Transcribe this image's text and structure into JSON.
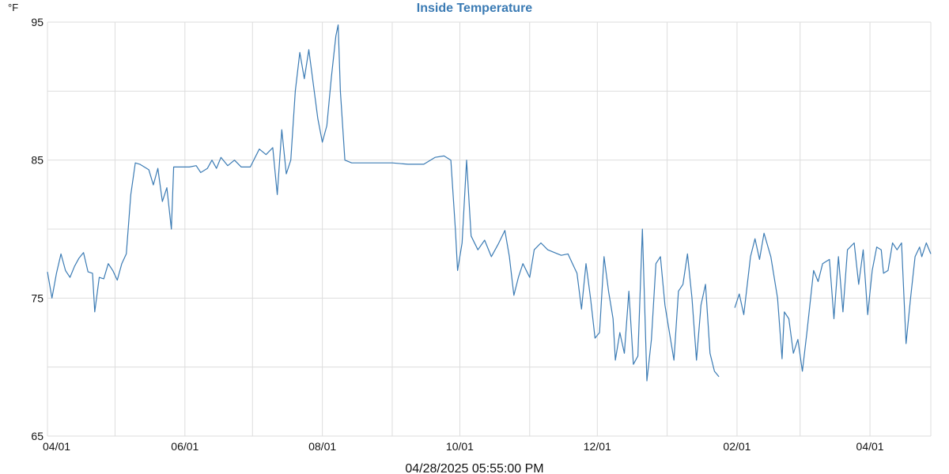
{
  "chart_data": {
    "type": "line",
    "title": "Inside Temperature",
    "y_unit": "°F",
    "ylim": [
      65,
      95
    ],
    "y_ticks": [
      65,
      75,
      85,
      95
    ],
    "x_range": [
      "2024-04-01",
      "2025-04-28"
    ],
    "x_ticks": [
      {
        "date": "2024-04-01",
        "label": "04/01"
      },
      {
        "date": "2024-06-01",
        "label": "06/01"
      },
      {
        "date": "2024-08-01",
        "label": "08/01"
      },
      {
        "date": "2024-10-01",
        "label": "10/01"
      },
      {
        "date": "2024-12-01",
        "label": "12/01"
      },
      {
        "date": "2025-02-01",
        "label": "02/01"
      },
      {
        "date": "2025-04-01",
        "label": "04/01"
      }
    ],
    "grid": true,
    "series": [
      {
        "color": "#3b7bb4",
        "segments": [
          [
            [
              "2024-04-01",
              76.9
            ],
            [
              "2024-04-03",
              75.0
            ],
            [
              "2024-04-05",
              76.8
            ],
            [
              "2024-04-07",
              78.2
            ],
            [
              "2024-04-09",
              77.0
            ],
            [
              "2024-04-11",
              76.5
            ],
            [
              "2024-04-13",
              77.3
            ],
            [
              "2024-04-15",
              77.9
            ],
            [
              "2024-04-17",
              78.3
            ],
            [
              "2024-04-19",
              76.9
            ],
            [
              "2024-04-21",
              76.8
            ],
            [
              "2024-04-22",
              74.0
            ],
            [
              "2024-04-24",
              76.5
            ],
            [
              "2024-04-26",
              76.4
            ],
            [
              "2024-04-28",
              77.5
            ],
            [
              "2024-04-30",
              77.0
            ],
            [
              "2024-05-02",
              76.3
            ],
            [
              "2024-05-04",
              77.5
            ],
            [
              "2024-05-06",
              78.2
            ],
            [
              "2024-05-08",
              82.5
            ],
            [
              "2024-05-10",
              84.8
            ],
            [
              "2024-05-12",
              84.7
            ],
            [
              "2024-05-14",
              84.5
            ],
            [
              "2024-05-16",
              84.3
            ],
            [
              "2024-05-18",
              83.2
            ],
            [
              "2024-05-20",
              84.4
            ],
            [
              "2024-05-22",
              82.0
            ],
            [
              "2024-05-24",
              83.0
            ],
            [
              "2024-05-26",
              80.0
            ],
            [
              "2024-05-27",
              84.5
            ],
            [
              "2024-05-30",
              84.5
            ],
            [
              "2024-06-03",
              84.5
            ],
            [
              "2024-06-06",
              84.6
            ],
            [
              "2024-06-08",
              84.1
            ],
            [
              "2024-06-11",
              84.4
            ],
            [
              "2024-06-13",
              85.0
            ],
            [
              "2024-06-15",
              84.4
            ],
            [
              "2024-06-17",
              85.2
            ],
            [
              "2024-06-20",
              84.6
            ],
            [
              "2024-06-23",
              85.0
            ],
            [
              "2024-06-26",
              84.5
            ],
            [
              "2024-06-30",
              84.5
            ],
            [
              "2024-07-04",
              85.8
            ],
            [
              "2024-07-07",
              85.4
            ],
            [
              "2024-07-10",
              85.9
            ],
            [
              "2024-07-12",
              82.5
            ],
            [
              "2024-07-14",
              87.2
            ],
            [
              "2024-07-16",
              84.0
            ],
            [
              "2024-07-18",
              85.0
            ],
            [
              "2024-07-20",
              90.0
            ],
            [
              "2024-07-22",
              92.8
            ],
            [
              "2024-07-24",
              90.9
            ],
            [
              "2024-07-26",
              93.0
            ],
            [
              "2024-07-28",
              90.5
            ],
            [
              "2024-07-30",
              88.0
            ],
            [
              "2024-08-01",
              86.3
            ],
            [
              "2024-08-03",
              87.5
            ],
            [
              "2024-08-05",
              91.0
            ],
            [
              "2024-08-07",
              94.0
            ],
            [
              "2024-08-08",
              94.8
            ],
            [
              "2024-08-09",
              90.0
            ],
            [
              "2024-08-11",
              85.0
            ],
            [
              "2024-08-14",
              84.8
            ],
            [
              "2024-08-19",
              84.8
            ],
            [
              "2024-08-25",
              84.8
            ],
            [
              "2024-09-01",
              84.8
            ],
            [
              "2024-09-08",
              84.7
            ],
            [
              "2024-09-15",
              84.7
            ],
            [
              "2024-09-20",
              85.2
            ],
            [
              "2024-09-24",
              85.3
            ],
            [
              "2024-09-27",
              85.0
            ],
            [
              "2024-09-29",
              80.0
            ],
            [
              "2024-09-30",
              77.0
            ],
            [
              "2024-10-02",
              79.0
            ],
            [
              "2024-10-04",
              85.0
            ],
            [
              "2024-10-06",
              79.5
            ],
            [
              "2024-10-09",
              78.5
            ],
            [
              "2024-10-12",
              79.2
            ],
            [
              "2024-10-15",
              78.0
            ],
            [
              "2024-10-18",
              78.9
            ],
            [
              "2024-10-21",
              79.9
            ],
            [
              "2024-10-23",
              78.0
            ],
            [
              "2024-10-25",
              75.2
            ],
            [
              "2024-10-27",
              76.5
            ],
            [
              "2024-10-29",
              77.5
            ],
            [
              "2024-11-01",
              76.5
            ],
            [
              "2024-11-03",
              78.5
            ],
            [
              "2024-11-06",
              79.0
            ],
            [
              "2024-11-09",
              78.5
            ],
            [
              "2024-11-12",
              78.3
            ],
            [
              "2024-11-15",
              78.1
            ],
            [
              "2024-11-18",
              78.2
            ],
            [
              "2024-11-20",
              77.5
            ],
            [
              "2024-11-22",
              76.8
            ],
            [
              "2024-11-24",
              74.2
            ],
            [
              "2024-11-26",
              77.5
            ],
            [
              "2024-11-28",
              75.0
            ],
            [
              "2024-11-30",
              72.1
            ],
            [
              "2024-12-02",
              72.5
            ],
            [
              "2024-12-04",
              78.0
            ],
            [
              "2024-12-06",
              75.5
            ],
            [
              "2024-12-08",
              73.5
            ],
            [
              "2024-12-09",
              70.5
            ],
            [
              "2024-12-11",
              72.5
            ],
            [
              "2024-12-13",
              71.0
            ],
            [
              "2024-12-15",
              75.5
            ],
            [
              "2024-12-17",
              70.2
            ],
            [
              "2024-12-19",
              70.8
            ],
            [
              "2024-12-21",
              80.0
            ],
            [
              "2024-12-23",
              69.0
            ],
            [
              "2024-12-25",
              72.0
            ],
            [
              "2024-12-27",
              77.5
            ],
            [
              "2024-12-29",
              78.0
            ],
            [
              "2024-12-31",
              74.5
            ],
            [
              "2025-01-02",
              72.5
            ],
            [
              "2025-01-04",
              70.5
            ],
            [
              "2025-01-06",
              75.5
            ],
            [
              "2025-01-08",
              76.0
            ],
            [
              "2025-01-10",
              78.2
            ],
            [
              "2025-01-12",
              75.0
            ],
            [
              "2025-01-14",
              70.5
            ],
            [
              "2025-01-16",
              74.5
            ],
            [
              "2025-01-18",
              76.0
            ],
            [
              "2025-01-20",
              71.0
            ],
            [
              "2025-01-22",
              69.7
            ],
            [
              "2025-01-24",
              69.3
            ]
          ],
          [
            [
              "2025-01-31",
              74.3
            ],
            [
              "2025-02-02",
              75.3
            ],
            [
              "2025-02-04",
              73.8
            ],
            [
              "2025-02-07",
              78.0
            ],
            [
              "2025-02-09",
              79.3
            ],
            [
              "2025-02-11",
              77.8
            ],
            [
              "2025-02-13",
              79.7
            ],
            [
              "2025-02-16",
              78.0
            ],
            [
              "2025-02-19",
              75.0
            ],
            [
              "2025-02-21",
              70.6
            ],
            [
              "2025-02-22",
              74.0
            ],
            [
              "2025-02-24",
              73.5
            ],
            [
              "2025-02-26",
              71.0
            ],
            [
              "2025-02-28",
              72.0
            ],
            [
              "2025-03-02",
              69.7
            ],
            [
              "2025-03-04",
              72.5
            ],
            [
              "2025-03-07",
              77.0
            ],
            [
              "2025-03-09",
              76.2
            ],
            [
              "2025-03-11",
              77.5
            ],
            [
              "2025-03-14",
              77.8
            ],
            [
              "2025-03-16",
              73.5
            ],
            [
              "2025-03-18",
              78.0
            ],
            [
              "2025-03-20",
              74.0
            ],
            [
              "2025-03-22",
              78.5
            ],
            [
              "2025-03-25",
              79.0
            ],
            [
              "2025-03-27",
              76.0
            ],
            [
              "2025-03-29",
              78.5
            ],
            [
              "2025-03-31",
              73.8
            ],
            [
              "2025-04-02",
              77.0
            ],
            [
              "2025-04-04",
              78.7
            ],
            [
              "2025-04-06",
              78.5
            ],
            [
              "2025-04-07",
              76.8
            ],
            [
              "2025-04-09",
              77.0
            ],
            [
              "2025-04-11",
              79.0
            ],
            [
              "2025-04-13",
              78.5
            ],
            [
              "2025-04-15",
              79.0
            ],
            [
              "2025-04-17",
              71.7
            ],
            [
              "2025-04-19",
              75.0
            ],
            [
              "2025-04-21",
              78.0
            ],
            [
              "2025-04-23",
              78.7
            ],
            [
              "2025-04-24",
              78.0
            ],
            [
              "2025-04-26",
              79.0
            ],
            [
              "2025-04-28",
              78.2
            ]
          ]
        ]
      }
    ],
    "footer": "04/28/2025 05:55:00 PM",
    "colors": {
      "title": "#3b7bb4",
      "line": "#3b7bb4",
      "grid": "#dddddd"
    }
  }
}
